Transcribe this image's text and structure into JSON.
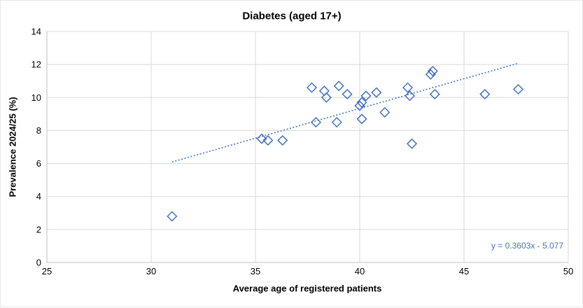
{
  "colors": {
    "accent": "#4472C4",
    "gridline": "#D9D9D9",
    "axis_line": "#BFBFBF",
    "text": "#000000"
  },
  "chart_data": {
    "type": "scatter",
    "title": "Diabetes (aged 17+)",
    "xlabel": "Average age of registered patients",
    "ylabel": "Prevalence 2024/25 (%)",
    "xlim": [
      25,
      50
    ],
    "ylim": [
      0,
      14
    ],
    "x_ticks": [
      25,
      30,
      35,
      40,
      45,
      50
    ],
    "y_ticks": [
      0,
      2,
      4,
      6,
      8,
      10,
      12,
      14
    ],
    "grid": true,
    "legend": "none",
    "marker": {
      "shape": "diamond",
      "color": "#4472C4",
      "fill": "none"
    },
    "points": [
      [
        31.0,
        2.8
      ],
      [
        35.3,
        7.5
      ],
      [
        35.6,
        7.4
      ],
      [
        36.3,
        7.4
      ],
      [
        37.7,
        10.6
      ],
      [
        37.9,
        8.5
      ],
      [
        38.3,
        10.4
      ],
      [
        38.4,
        10.0
      ],
      [
        38.9,
        8.5
      ],
      [
        39.0,
        10.7
      ],
      [
        39.4,
        10.2
      ],
      [
        40.0,
        9.5
      ],
      [
        40.1,
        9.7
      ],
      [
        40.1,
        8.7
      ],
      [
        40.3,
        10.1
      ],
      [
        40.8,
        10.3
      ],
      [
        41.2,
        9.1
      ],
      [
        42.3,
        10.6
      ],
      [
        42.4,
        10.1
      ],
      [
        42.5,
        7.2
      ],
      [
        43.4,
        11.4
      ],
      [
        43.5,
        11.6
      ],
      [
        43.6,
        10.2
      ],
      [
        46.0,
        10.2
      ],
      [
        47.6,
        10.5
      ]
    ],
    "trendline": {
      "style": "dotted",
      "color": "#4472C4",
      "slope": 0.3603,
      "intercept": -5.077,
      "x_start": 31.0,
      "x_end": 47.6,
      "equation_label": "y = 0.3603x - 5.077"
    }
  }
}
